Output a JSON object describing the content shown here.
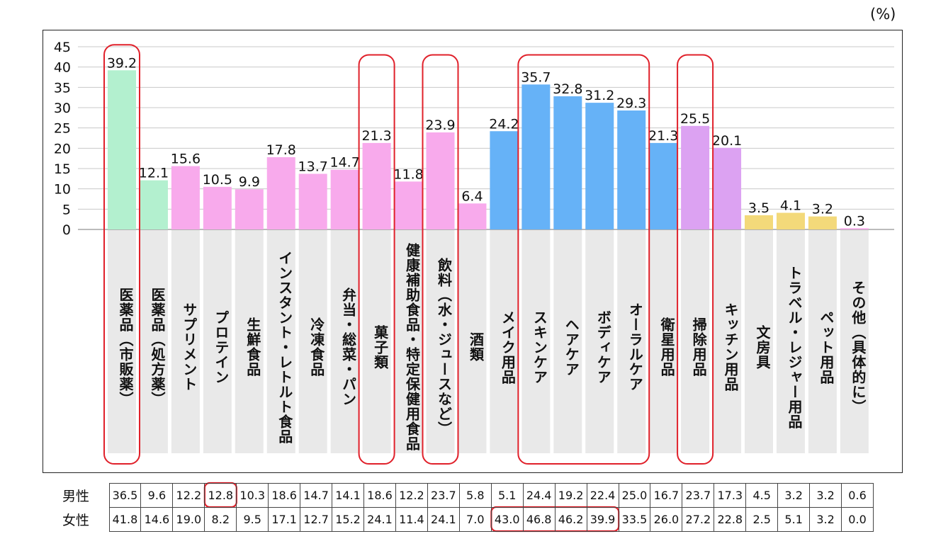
{
  "chart_data": {
    "type": "bar",
    "unit": "(%)",
    "ylim": [
      0,
      45
    ],
    "yticks": [
      0,
      5,
      10,
      15,
      20,
      25,
      30,
      35,
      40,
      45
    ],
    "grid": true,
    "categories": [
      "医薬品（市販薬）",
      "医薬品（処方薬）",
      "サプリメント",
      "プロテイン",
      "生鮮食品",
      "インスタント・レトルト食品",
      "冷凍食品",
      "弁当・総菜・パン",
      "菓子類",
      "健康補助食品・特定保健用食品",
      "飲料（水・ジュースなど）",
      "酒類",
      "メイク用品",
      "スキンケア",
      "ヘアケア",
      "ボディケア",
      "オーラルケア",
      "衛星用品",
      "掃除用品",
      "キッチン用品",
      "文房具",
      "トラベル・レジャー用品",
      "ペット用品",
      "その他（具体的に）"
    ],
    "values": [
      39.2,
      12.1,
      15.6,
      10.5,
      9.9,
      17.8,
      13.7,
      14.7,
      21.3,
      11.8,
      23.9,
      6.4,
      24.2,
      35.7,
      32.8,
      31.2,
      29.3,
      21.3,
      25.5,
      20.1,
      3.5,
      4.1,
      3.2,
      0.3
    ],
    "value_labels": [
      "39.2",
      "12.1",
      "15.6",
      "10.5",
      "9.9",
      "17.8",
      "13.7",
      "14.7",
      "21.3",
      "11.8",
      "23.9",
      "6.4",
      "24.2",
      "35.7",
      "32.8",
      "31.2",
      "29.3",
      "21.3",
      "25.5",
      "20.1",
      "3.5",
      "4.1",
      "3.2",
      "0.3"
    ],
    "bar_colors": [
      "#b3f0cf",
      "#b3f0cf",
      "#f8aaec",
      "#f8aaec",
      "#f8aaec",
      "#f8aaec",
      "#f8aaec",
      "#f8aaec",
      "#f8aaec",
      "#f8aaec",
      "#f8aaec",
      "#f8aaec",
      "#66b2f7",
      "#66b2f7",
      "#66b2f7",
      "#66b2f7",
      "#66b2f7",
      "#66b2f7",
      "#dca2f2",
      "#dca2f2",
      "#f3d97a",
      "#f3d97a",
      "#f3d97a",
      "#f8aaec"
    ],
    "highlighted_categories": [
      0,
      8,
      10,
      13,
      14,
      15,
      16,
      18
    ],
    "label_background": "#e9e9e9",
    "highlight_color": "#e0202a",
    "table": {
      "rows": [
        {
          "name": "男性",
          "values": [
            "36.5",
            "9.6",
            "12.2",
            "12.8",
            "10.3",
            "18.6",
            "14.7",
            "14.1",
            "18.6",
            "12.2",
            "23.7",
            "5.8",
            "5.1",
            "24.4",
            "19.2",
            "22.4",
            "25.0",
            "16.7",
            "23.7",
            "17.3",
            "4.5",
            "3.2",
            "3.2",
            "0.6"
          ]
        },
        {
          "name": "女性",
          "values": [
            "41.8",
            "14.6",
            "19.0",
            "8.2",
            "9.5",
            "17.1",
            "12.7",
            "15.2",
            "24.1",
            "11.4",
            "24.1",
            "7.0",
            "43.0",
            "46.8",
            "46.2",
            "39.9",
            "33.5",
            "26.0",
            "27.2",
            "22.8",
            "2.5",
            "5.1",
            "3.2",
            "0.0"
          ]
        }
      ],
      "highlighted_cells": [
        {
          "row": 0,
          "cols": [
            3
          ]
        },
        {
          "row": 1,
          "cols": [
            12,
            13,
            14,
            15
          ]
        }
      ]
    }
  }
}
